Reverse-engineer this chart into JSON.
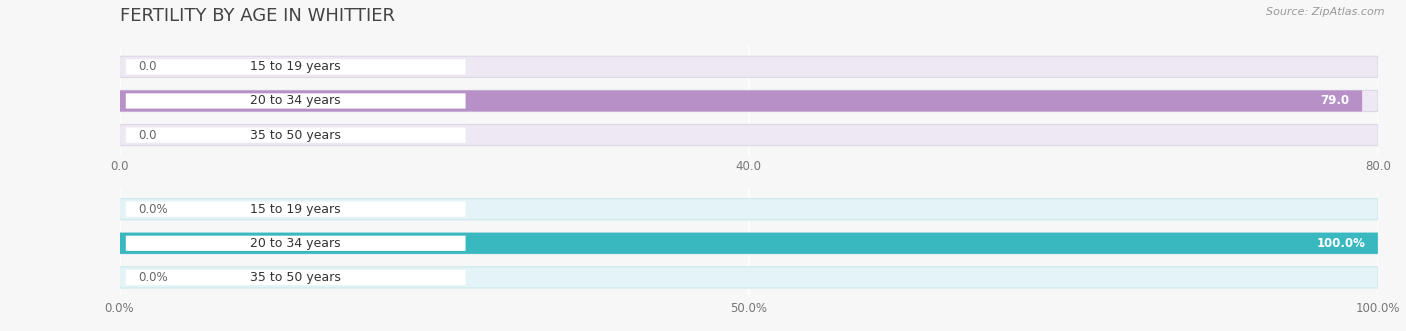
{
  "title": "FERTILITY BY AGE IN WHITTIER",
  "source": "Source: ZipAtlas.com",
  "top_chart": {
    "categories": [
      "15 to 19 years",
      "20 to 34 years",
      "35 to 50 years"
    ],
    "values": [
      0.0,
      79.0,
      0.0
    ],
    "xlim_max": 80.0,
    "xticks": [
      0.0,
      40.0,
      80.0
    ],
    "xtick_labels": [
      "0.0",
      "40.0",
      "80.0"
    ],
    "bar_color": "#b890c8",
    "bar_bg_color": "#ede8f2",
    "bar_bg_border": "#ddd8e8",
    "label_inside_color": "#ffffff",
    "label_outside_color": "#666666"
  },
  "bottom_chart": {
    "categories": [
      "15 to 19 years",
      "20 to 34 years",
      "35 to 50 years"
    ],
    "values": [
      0.0,
      100.0,
      0.0
    ],
    "xlim_max": 100.0,
    "xticks": [
      0.0,
      50.0,
      100.0
    ],
    "xtick_labels": [
      "0.0%",
      "50.0%",
      "100.0%"
    ],
    "bar_color": "#3ab8c0",
    "bar_bg_color": "#e4f4f6",
    "bar_bg_border": "#cce8ec",
    "label_inside_color": "#ffffff",
    "label_outside_color": "#666666"
  },
  "background_color": "#f7f7f7",
  "fig_width": 14.06,
  "fig_height": 3.31,
  "title_fontsize": 13,
  "label_fontsize": 8.5,
  "tick_fontsize": 8.5,
  "source_fontsize": 8,
  "category_fontsize": 9
}
